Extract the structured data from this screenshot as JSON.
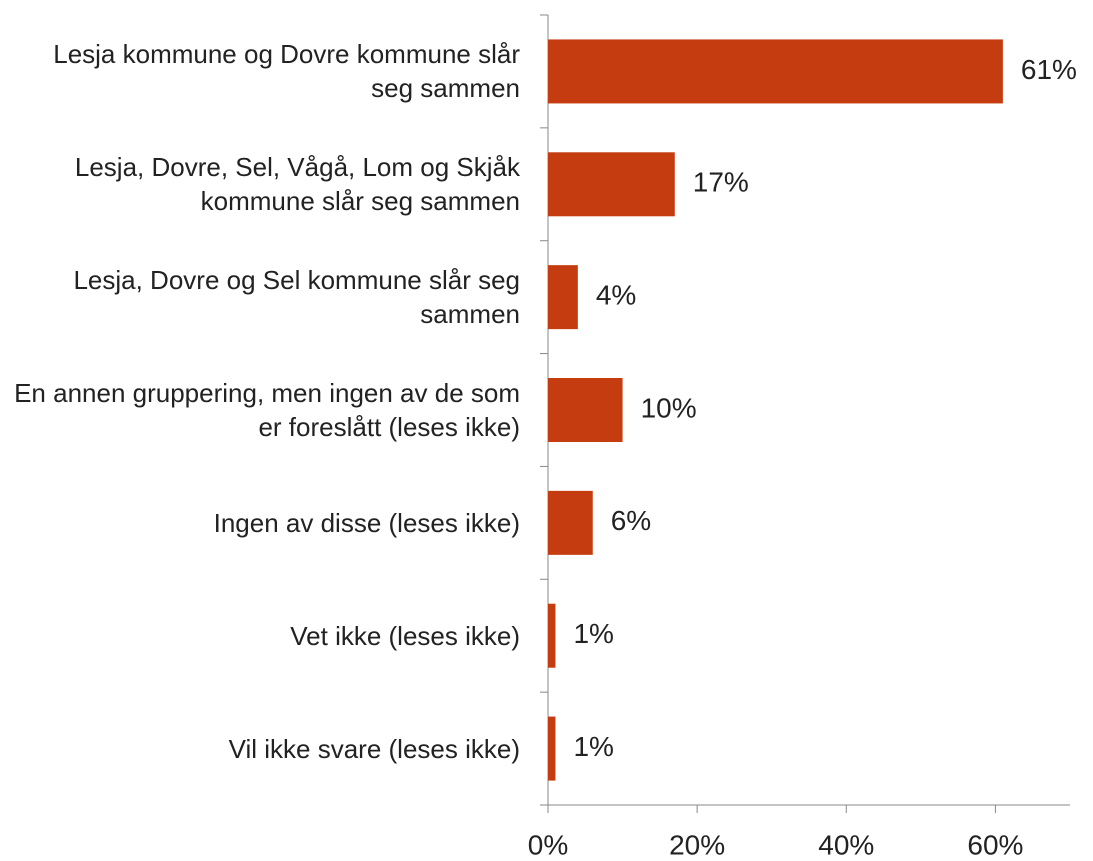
{
  "chart_data": {
    "type": "bar",
    "orientation": "horizontal",
    "categories": [
      "Lesja kommune og Dovre kommune slår seg sammen",
      "Lesja, Dovre, Sel, Vågå, Lom og Skjåk kommune slår seg sammen",
      "Lesja, Dovre og Sel kommune slår seg sammen",
      "En annen gruppering, men ingen av de som er foreslått (leses ikke)",
      "Ingen av disse (leses ikke)",
      "Vet ikke (leses ikke)",
      "Vil ikke svare (leses ikke)"
    ],
    "values": [
      61,
      17,
      4,
      10,
      6,
      1,
      1
    ],
    "value_labels": [
      "61%",
      "17%",
      "4%",
      "10%",
      "6%",
      "1%",
      "1%"
    ],
    "color": "#c43c10",
    "xlim": [
      0,
      70
    ],
    "xticks": [
      {
        "value": 0,
        "label": "0%"
      },
      {
        "value": 20,
        "label": "20%"
      },
      {
        "value": 40,
        "label": "40%"
      },
      {
        "value": 60,
        "label": "60%"
      }
    ],
    "grid": false
  }
}
